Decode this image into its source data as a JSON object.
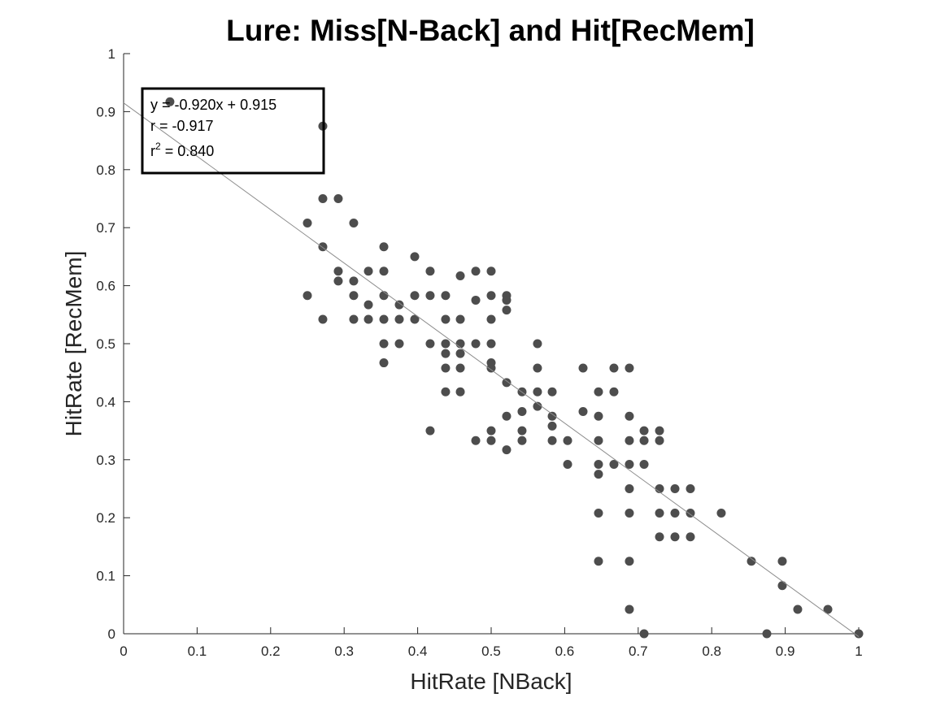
{
  "chart_data": {
    "type": "scatter",
    "title": "Lure: Miss[N-Back] and Hit[RecMem]",
    "xlabel": "HitRate [NBack]",
    "ylabel": "HitRate [RecMem]",
    "xlim": [
      0,
      1
    ],
    "ylim": [
      0,
      1
    ],
    "xticks": [
      "0",
      "0.1",
      "0.2",
      "0.3",
      "0.4",
      "0.5",
      "0.6",
      "0.7",
      "0.8",
      "0.9",
      "1"
    ],
    "yticks": [
      "0",
      "0.1",
      "0.2",
      "0.3",
      "0.4",
      "0.5",
      "0.6",
      "0.7",
      "0.8",
      "0.9",
      "1"
    ],
    "grid": false,
    "marker_color": "#4d4d4d",
    "fit_line": {
      "slope": -0.92,
      "intercept": 0.915,
      "color": "#8c8c8c"
    },
    "annotation": {
      "position": "top-left",
      "equation": "y = -0.920x + 0.915",
      "r_text": "r = -0.917",
      "r2_prefix": "r",
      "r2_sup": "2",
      "r2_suffix": " = 0.840"
    },
    "points": [
      [
        0.063,
        0.917
      ],
      [
        0.271,
        0.875
      ],
      [
        0.25,
        0.708
      ],
      [
        0.25,
        0.583
      ],
      [
        0.271,
        0.75
      ],
      [
        0.271,
        0.667
      ],
      [
        0.271,
        0.542
      ],
      [
        0.292,
        0.75
      ],
      [
        0.292,
        0.625
      ],
      [
        0.292,
        0.608
      ],
      [
        0.313,
        0.708
      ],
      [
        0.313,
        0.608
      ],
      [
        0.313,
        0.583
      ],
      [
        0.313,
        0.542
      ],
      [
        0.333,
        0.625
      ],
      [
        0.333,
        0.567
      ],
      [
        0.333,
        0.542
      ],
      [
        0.354,
        0.667
      ],
      [
        0.354,
        0.625
      ],
      [
        0.354,
        0.583
      ],
      [
        0.354,
        0.542
      ],
      [
        0.354,
        0.5
      ],
      [
        0.354,
        0.467
      ],
      [
        0.375,
        0.567
      ],
      [
        0.375,
        0.542
      ],
      [
        0.375,
        0.5
      ],
      [
        0.396,
        0.65
      ],
      [
        0.396,
        0.583
      ],
      [
        0.396,
        0.542
      ],
      [
        0.417,
        0.625
      ],
      [
        0.417,
        0.583
      ],
      [
        0.417,
        0.5
      ],
      [
        0.417,
        0.35
      ],
      [
        0.438,
        0.583
      ],
      [
        0.438,
        0.542
      ],
      [
        0.438,
        0.5
      ],
      [
        0.438,
        0.483
      ],
      [
        0.438,
        0.458
      ],
      [
        0.438,
        0.417
      ],
      [
        0.458,
        0.617
      ],
      [
        0.458,
        0.542
      ],
      [
        0.458,
        0.5
      ],
      [
        0.458,
        0.483
      ],
      [
        0.458,
        0.458
      ],
      [
        0.458,
        0.417
      ],
      [
        0.479,
        0.625
      ],
      [
        0.479,
        0.575
      ],
      [
        0.479,
        0.5
      ],
      [
        0.479,
        0.333
      ],
      [
        0.5,
        0.625
      ],
      [
        0.5,
        0.583
      ],
      [
        0.5,
        0.542
      ],
      [
        0.5,
        0.5
      ],
      [
        0.5,
        0.467
      ],
      [
        0.5,
        0.458
      ],
      [
        0.5,
        0.35
      ],
      [
        0.5,
        0.333
      ],
      [
        0.521,
        0.583
      ],
      [
        0.521,
        0.575
      ],
      [
        0.521,
        0.558
      ],
      [
        0.521,
        0.433
      ],
      [
        0.521,
        0.375
      ],
      [
        0.521,
        0.317
      ],
      [
        0.542,
        0.417
      ],
      [
        0.542,
        0.383
      ],
      [
        0.542,
        0.35
      ],
      [
        0.542,
        0.333
      ],
      [
        0.563,
        0.5
      ],
      [
        0.563,
        0.458
      ],
      [
        0.563,
        0.417
      ],
      [
        0.563,
        0.392
      ],
      [
        0.583,
        0.417
      ],
      [
        0.583,
        0.375
      ],
      [
        0.583,
        0.358
      ],
      [
        0.583,
        0.333
      ],
      [
        0.604,
        0.333
      ],
      [
        0.604,
        0.292
      ],
      [
        0.625,
        0.458
      ],
      [
        0.625,
        0.383
      ],
      [
        0.646,
        0.417
      ],
      [
        0.646,
        0.375
      ],
      [
        0.646,
        0.333
      ],
      [
        0.646,
        0.292
      ],
      [
        0.646,
        0.275
      ],
      [
        0.646,
        0.208
      ],
      [
        0.646,
        0.125
      ],
      [
        0.667,
        0.458
      ],
      [
        0.667,
        0.417
      ],
      [
        0.667,
        0.292
      ],
      [
        0.688,
        0.458
      ],
      [
        0.688,
        0.375
      ],
      [
        0.688,
        0.333
      ],
      [
        0.688,
        0.292
      ],
      [
        0.688,
        0.25
      ],
      [
        0.688,
        0.208
      ],
      [
        0.688,
        0.125
      ],
      [
        0.688,
        0.042
      ],
      [
        0.708,
        0.35
      ],
      [
        0.708,
        0.333
      ],
      [
        0.708,
        0.292
      ],
      [
        0.708,
        0.0
      ],
      [
        0.729,
        0.35
      ],
      [
        0.729,
        0.333
      ],
      [
        0.729,
        0.25
      ],
      [
        0.729,
        0.208
      ],
      [
        0.729,
        0.167
      ],
      [
        0.75,
        0.25
      ],
      [
        0.75,
        0.208
      ],
      [
        0.75,
        0.167
      ],
      [
        0.771,
        0.25
      ],
      [
        0.771,
        0.208
      ],
      [
        0.771,
        0.167
      ],
      [
        0.813,
        0.208
      ],
      [
        0.854,
        0.125
      ],
      [
        0.875,
        0.0
      ],
      [
        0.896,
        0.125
      ],
      [
        0.896,
        0.083
      ],
      [
        0.917,
        0.042
      ],
      [
        0.958,
        0.042
      ],
      [
        1.0,
        0.0
      ]
    ]
  }
}
